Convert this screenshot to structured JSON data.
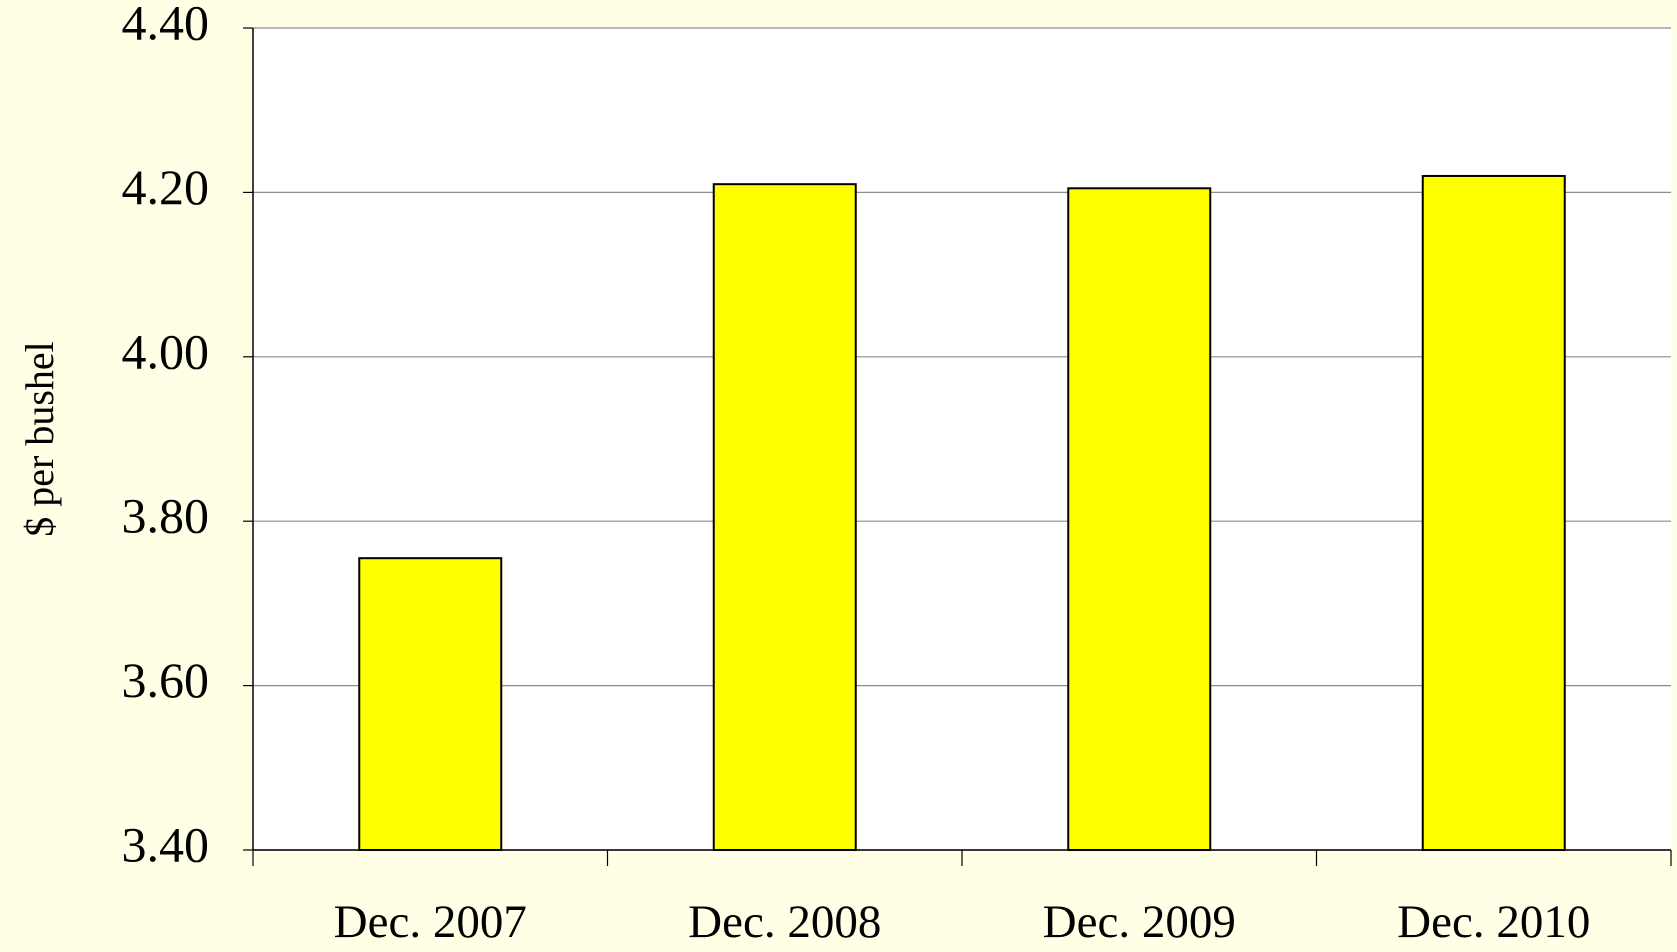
{
  "chart_data": {
    "type": "bar",
    "y_axis_label": "$ per bushel",
    "categories": [
      "Dec. 2007",
      "Dec. 2008",
      "Dec. 2009",
      "Dec. 2010"
    ],
    "values": [
      3.755,
      4.21,
      4.205,
      4.22
    ],
    "color": "#ffff00",
    "ylim": [
      3.4,
      4.4
    ],
    "yticks": [
      {
        "value": 3.4,
        "label": "3.40"
      },
      {
        "value": 3.6,
        "label": "3.60"
      },
      {
        "value": 3.8,
        "label": "3.80"
      },
      {
        "value": 4.0,
        "label": "4.00"
      },
      {
        "value": 4.2,
        "label": "4.20"
      },
      {
        "value": 4.4,
        "label": "4.40"
      }
    ],
    "grid": true
  }
}
